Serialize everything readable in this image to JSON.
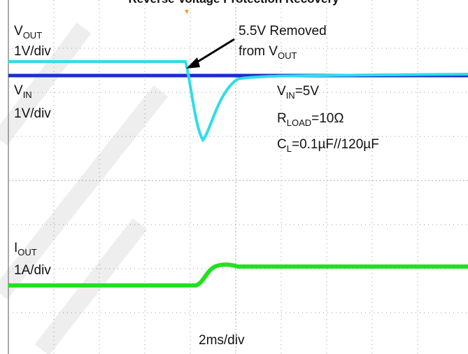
{
  "title": "Reverse Voltage Protection Recovery",
  "vout_label": {
    "main": "V",
    "sub": "OUT",
    "scale": "1V/div"
  },
  "vin_label": {
    "main": "V",
    "sub": "IN",
    "scale": "1V/div"
  },
  "iout_label": {
    "main": "I",
    "sub": "OUT",
    "scale": "1A/div"
  },
  "annotation": {
    "line1": "5.5V Removed",
    "line2_main": "from V",
    "line2_sub": "OUT"
  },
  "conditions": [
    {
      "main": "V",
      "sub": "IN",
      "rest": "=5V"
    },
    {
      "main": "R",
      "sub": "LOAD",
      "rest": "=10Ω"
    },
    {
      "main": "C",
      "sub": "L",
      "rest": "=0.1µF//120µF"
    }
  ],
  "timebase": "2ms/div"
}
